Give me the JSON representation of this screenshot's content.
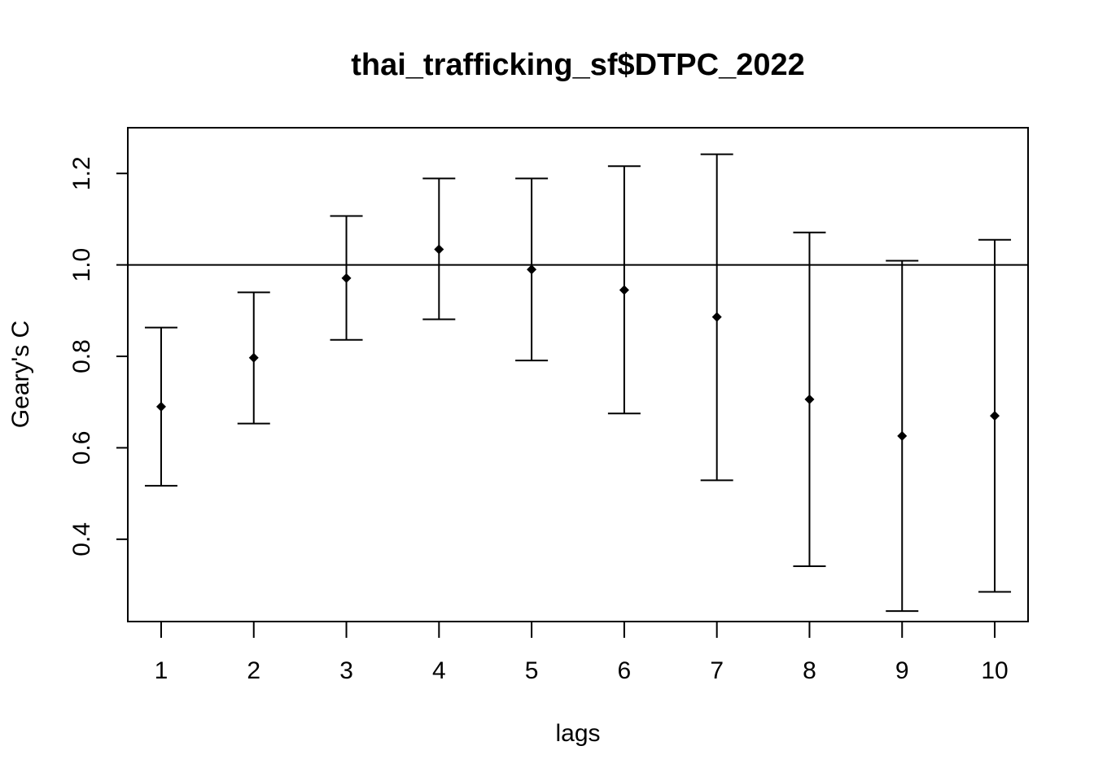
{
  "chart_data": {
    "type": "scatter",
    "title": "thai_trafficking_sf$DTPC_2022",
    "xlabel": "lags",
    "ylabel": "Geary's  C",
    "x": [
      1,
      2,
      3,
      4,
      5,
      6,
      7,
      8,
      9,
      10
    ],
    "x_tick_labels": [
      "1",
      "2",
      "3",
      "4",
      "5",
      "6",
      "7",
      "8",
      "9",
      "10"
    ],
    "y_ticks": [
      0.4,
      0.6,
      0.8,
      1.0,
      1.2
    ],
    "y_tick_labels": [
      "0.4",
      "0.6",
      "0.8",
      "1.0",
      "1.2"
    ],
    "ylim": [
      0.22,
      1.3
    ],
    "xlim": [
      0.64,
      10.36
    ],
    "reference_line": 1.0,
    "series": [
      {
        "values": [
          0.69,
          0.797,
          0.971,
          1.034,
          0.99,
          0.945,
          0.886,
          0.706,
          0.626,
          0.67
        ],
        "lower": [
          0.517,
          0.653,
          0.836,
          0.881,
          0.791,
          0.675,
          0.529,
          0.341,
          0.243,
          0.285
        ],
        "upper": [
          0.863,
          0.94,
          1.107,
          1.189,
          1.189,
          1.216,
          1.242,
          1.071,
          1.009,
          1.055
        ]
      }
    ],
    "grid": false,
    "legend": false
  }
}
